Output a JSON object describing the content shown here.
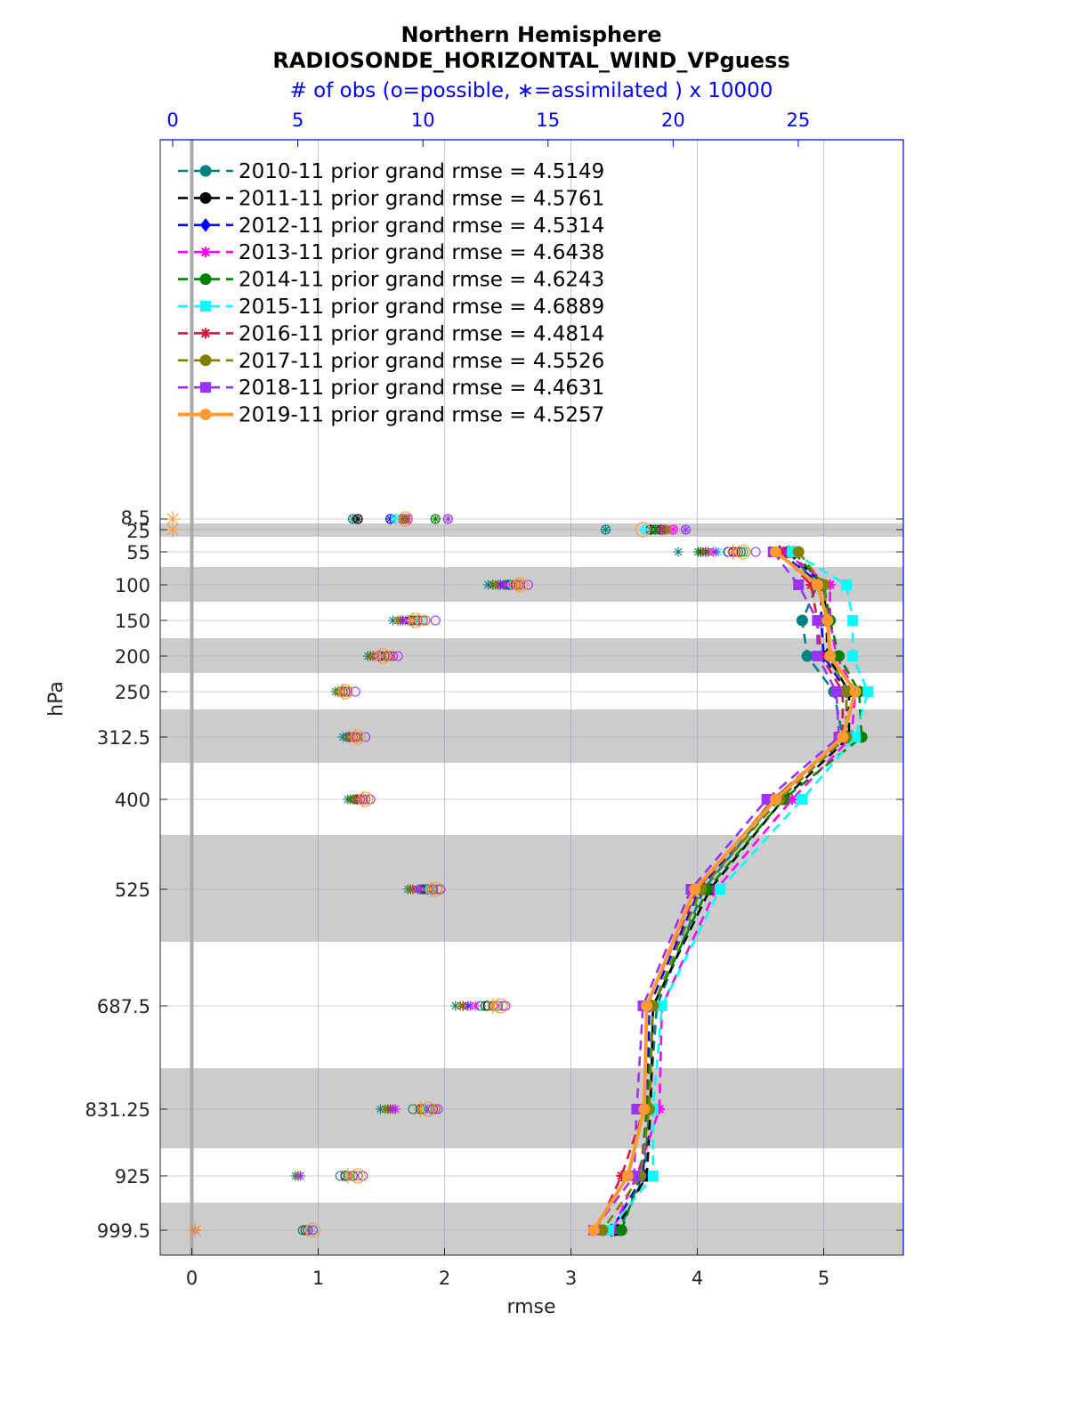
{
  "chart_data": {
    "type": "line",
    "title": "Northern Hemisphere",
    "subtitle": "RADIOSONDE_HORIZONTAL_WIND_VPguess",
    "top_axis_label": "# of obs (o=possible, ∗=assimilated ) x 10000",
    "xlabel": "rmse",
    "ylabel": "hPa",
    "xlim": [
      -0.25,
      5.63
    ],
    "x_ticks": [
      0,
      1,
      2,
      3,
      4,
      5
    ],
    "top_xlim": [
      -0.5,
      29.2
    ],
    "top_ticks": [
      0,
      5,
      10,
      15,
      20,
      25
    ],
    "levels": [
      8.5,
      25,
      55,
      100,
      150,
      200,
      250,
      312.5,
      400,
      525,
      687.5,
      831.25,
      925,
      999.5
    ],
    "level_labels": [
      "8.5",
      "25",
      "55",
      "100",
      "150",
      "200",
      "250",
      "312.5",
      "400",
      "525",
      "687.5",
      "831.25",
      "925",
      "999.5"
    ],
    "series": [
      {
        "name": "2010-11 prior grand rmse = 4.5149",
        "color": "#008080",
        "dash": "dashed",
        "marker": "circle",
        "rmse": [
          null,
          null,
          4.72,
          4.95,
          4.83,
          4.87,
          5.08,
          5.15,
          4.62,
          4.05,
          3.68,
          3.62,
          3.58,
          3.38
        ],
        "possible": [
          7.2,
          17.3,
          22.7,
          13.3,
          9.7,
          8.2,
          6.7,
          7.0,
          7.3,
          9.9,
          12.3,
          9.6,
          6.7,
          5.2
        ],
        "assimilated": [
          7.2,
          17.3,
          20.2,
          12.6,
          8.8,
          7.8,
          6.5,
          6.8,
          7.0,
          9.4,
          11.3,
          8.3,
          4.9,
          0.9
        ]
      },
      {
        "name": "2011-11 prior grand rmse = 4.5761",
        "color": "#000000",
        "dash": "dashed",
        "marker": "circle",
        "rmse": [
          null,
          null,
          4.72,
          5.0,
          5.02,
          5.03,
          5.2,
          5.2,
          4.68,
          4.1,
          3.65,
          3.63,
          3.6,
          3.35
        ],
        "possible": [
          7.4,
          19.1,
          22.4,
          13.6,
          9.5,
          8.3,
          6.9,
          7.3,
          7.4,
          10.1,
          12.6,
          9.9,
          6.9,
          5.4
        ],
        "assimilated": [
          7.4,
          19.1,
          21.1,
          12.8,
          9.0,
          7.9,
          6.6,
          7.1,
          7.2,
          9.6,
          11.6,
          8.5,
          5.0,
          0.9
        ]
      },
      {
        "name": "2012-11 prior grand rmse = 4.5314",
        "color": "#0000ff",
        "dash": "dashed",
        "marker": "diamond",
        "rmse": [
          null,
          null,
          4.65,
          4.98,
          4.98,
          5.0,
          5.18,
          5.18,
          4.6,
          4.02,
          3.62,
          3.6,
          3.57,
          3.32
        ],
        "possible": [
          8.7,
          19.5,
          22.2,
          13.5,
          9.8,
          8.5,
          6.8,
          7.1,
          7.5,
          10.2,
          12.5,
          10.0,
          6.9,
          5.3
        ],
        "assimilated": [
          8.7,
          19.5,
          21.3,
          13.1,
          9.2,
          8.0,
          6.7,
          7.0,
          7.3,
          9.8,
          11.8,
          8.9,
          5.1,
          0.9
        ]
      },
      {
        "name": "2013-11 prior grand rmse = 4.6438",
        "color": "#ff00ff",
        "dash": "dashed",
        "marker": "star",
        "rmse": [
          null,
          null,
          4.68,
          5.05,
          5.05,
          5.1,
          5.25,
          5.22,
          4.75,
          4.15,
          3.72,
          3.7,
          3.52,
          3.33
        ],
        "possible": [
          9.4,
          20.0,
          22.5,
          13.8,
          10.0,
          8.8,
          7.0,
          7.4,
          7.7,
          10.4,
          13.2,
          10.3,
          7.2,
          5.4
        ],
        "assimilated": [
          9.4,
          20.0,
          21.6,
          13.3,
          9.4,
          8.2,
          6.8,
          7.2,
          7.4,
          9.9,
          12.1,
          8.9,
          5.0,
          0.9
        ]
      },
      {
        "name": "2014-11 prior grand rmse = 4.6243",
        "color": "#008000",
        "dash": "dashed",
        "marker": "circle",
        "rmse": [
          null,
          null,
          4.76,
          5.0,
          5.05,
          5.12,
          5.28,
          5.3,
          4.68,
          4.08,
          3.65,
          3.6,
          3.55,
          3.4
        ],
        "possible": [
          10.5,
          19.3,
          22.7,
          13.4,
          9.6,
          8.3,
          6.7,
          7.2,
          7.4,
          10.0,
          12.5,
          9.9,
          7.0,
          5.3
        ],
        "assimilated": [
          10.5,
          19.3,
          21.0,
          12.8,
          9.1,
          8.0,
          6.6,
          7.0,
          7.1,
          9.5,
          11.6,
          8.6,
          5.0,
          0.9
        ]
      },
      {
        "name": "2015-11 prior grand rmse = 4.6889",
        "color": "#00ffff",
        "dash": "dashed",
        "marker": "square",
        "rmse": [
          null,
          null,
          4.75,
          5.18,
          5.23,
          5.23,
          5.35,
          5.25,
          4.83,
          4.18,
          3.72,
          3.65,
          3.65,
          3.3
        ],
        "possible": [
          8.9,
          18.9,
          22.9,
          13.6,
          9.9,
          8.6,
          7.0,
          7.4,
          7.6,
          10.3,
          12.9,
          10.2,
          7.1,
          5.5
        ],
        "assimilated": [
          8.9,
          18.9,
          21.8,
          13.0,
          9.3,
          8.1,
          6.7,
          7.1,
          7.3,
          9.8,
          11.9,
          8.7,
          5.1,
          0.9
        ]
      },
      {
        "name": "2016-11 prior grand rmse = 4.4814",
        "color": "#dc143c",
        "dash": "dashed",
        "marker": "star",
        "rmse": [
          null,
          null,
          4.65,
          4.9,
          4.95,
          4.98,
          5.15,
          5.15,
          4.6,
          4.0,
          3.6,
          3.58,
          3.4,
          3.2
        ],
        "possible": [
          9.2,
          19.6,
          22.6,
          13.7,
          9.8,
          8.6,
          6.9,
          7.3,
          7.6,
          10.4,
          12.8,
          10.4,
          7.2,
          5.4
        ],
        "assimilated": [
          9.2,
          19.6,
          21.4,
          13.0,
          9.1,
          8.0,
          6.6,
          7.1,
          7.3,
          9.6,
          11.6,
          8.7,
          5.0,
          0.9
        ]
      },
      {
        "name": "2017-11 prior grand rmse = 4.5526",
        "color": "#808000",
        "dash": "dashed",
        "marker": "circle",
        "rmse": [
          null,
          null,
          4.8,
          5.0,
          5.03,
          5.05,
          5.18,
          5.18,
          4.65,
          4.03,
          3.65,
          3.62,
          3.55,
          3.25
        ],
        "possible": [
          9.3,
          19.7,
          22.8,
          13.9,
          10.1,
          8.7,
          7.0,
          7.4,
          7.7,
          10.6,
          13.0,
          10.5,
          7.4,
          5.6
        ],
        "assimilated": [
          9.3,
          19.7,
          21.2,
          12.9,
          9.0,
          7.9,
          6.6,
          7.0,
          7.2,
          9.5,
          11.5,
          8.5,
          5.0,
          0.9
        ]
      },
      {
        "name": "2018-11 prior grand rmse = 4.4631",
        "color": "#9933ff",
        "dash": "dashed",
        "marker": "square",
        "rmse": [
          null,
          null,
          4.6,
          4.8,
          4.95,
          4.95,
          5.1,
          5.12,
          4.55,
          3.95,
          3.57,
          3.52,
          3.5,
          3.18
        ],
        "possible": [
          11.0,
          20.5,
          23.3,
          14.2,
          10.5,
          9.0,
          7.3,
          7.7,
          7.9,
          10.7,
          13.3,
          10.6,
          7.6,
          5.6
        ],
        "assimilated": [
          11.0,
          20.5,
          21.7,
          13.2,
          9.3,
          8.2,
          6.8,
          7.2,
          7.5,
          9.8,
          11.9,
          8.8,
          5.1,
          0.9
        ]
      },
      {
        "name": "2019-11 prior grand rmse = 4.5257",
        "color": "#ff9933",
        "dash": "solid",
        "marker": "circle",
        "rmse": [
          null,
          null,
          4.62,
          4.95,
          5.03,
          5.05,
          5.25,
          5.15,
          4.62,
          3.98,
          3.6,
          3.58,
          3.45,
          3.18
        ],
        "possible": [
          9.3,
          18.8,
          22.8,
          13.9,
          9.7,
          8.4,
          6.9,
          7.4,
          7.7,
          10.5,
          13.1,
          10.2,
          7.4,
          5.6
        ],
        "assimilated": [
          0.0,
          0.0,
          22.4,
          13.8,
          9.6,
          8.3,
          6.8,
          7.3,
          7.6,
          10.3,
          12.8,
          9.9,
          7.0,
          0.9
        ]
      }
    ],
    "grid": true,
    "legend": "top-left"
  }
}
